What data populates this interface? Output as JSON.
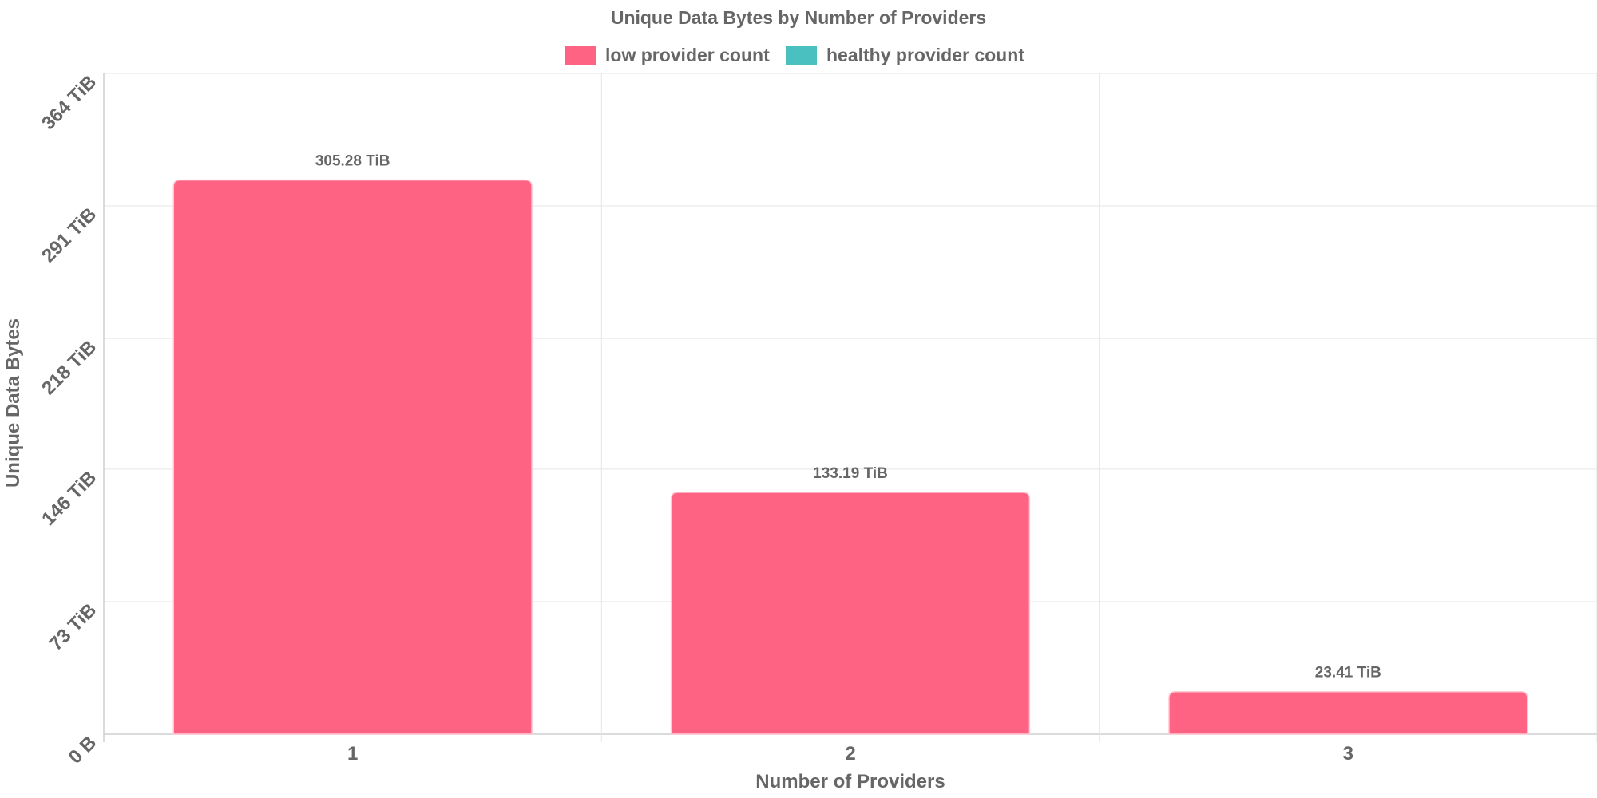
{
  "chart_data": {
    "type": "bar",
    "title": "Unique Data Bytes by Number of Providers",
    "xlabel": "Number of Providers",
    "ylabel": "Unique Data Bytes",
    "categories": [
      "1",
      "2",
      "3"
    ],
    "series": [
      {
        "name": "low provider count",
        "color": "#ff6384",
        "values": [
          305.28,
          133.19,
          23.41
        ],
        "data_labels": [
          "305.28 TiB",
          "133.19 TiB",
          "23.41 TiB"
        ]
      },
      {
        "name": "healthy provider count",
        "color": "#4bc0c0",
        "values": [
          0,
          0,
          0
        ],
        "data_labels": []
      }
    ],
    "y_unit": "TiB",
    "ylim": [
      0,
      364
    ],
    "y_ticks": [
      0,
      73,
      146,
      218,
      291,
      364
    ],
    "y_tick_labels": [
      "0 B",
      "73 TiB",
      "146 TiB",
      "218 TiB",
      "291 TiB",
      "364 TiB"
    ],
    "grid": true,
    "legend_position": "top"
  }
}
